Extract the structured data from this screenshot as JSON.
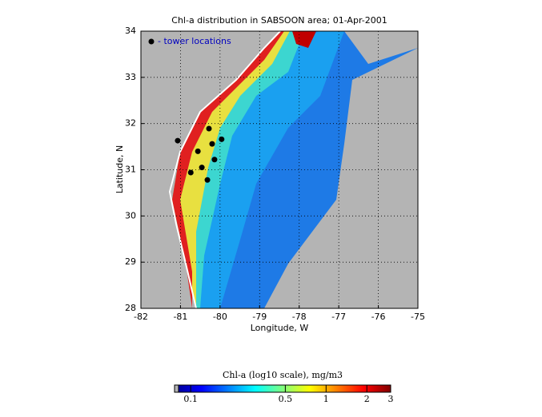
{
  "chart_data": {
    "type": "map",
    "title": "Chl-a distribution in SABSOON area; 01-Apr-2001",
    "x_label": "Longitude, W",
    "y_label": "Latitude, N",
    "xlim": [
      -82,
      -75
    ],
    "ylim": [
      28,
      34
    ],
    "xticks": [
      -82,
      -81,
      -80,
      -79,
      -78,
      -77,
      -76,
      -75
    ],
    "yticks": [
      28,
      29,
      30,
      31,
      32,
      33,
      34
    ],
    "grid": true,
    "legend": "upper left",
    "series": [
      {
        "name": "- tower locations",
        "color": "#000000",
        "x": [
          -81.07,
          -80.28,
          -79.96,
          -80.2,
          -80.56,
          -80.14,
          -80.46,
          -80.74,
          -80.32
        ],
        "y": [
          31.63,
          31.89,
          31.66,
          31.56,
          31.4,
          31.22,
          31.05,
          30.94,
          30.78
        ]
      }
    ],
    "colorbar": {
      "label": "Chl-a (log10 scale), mg/m3",
      "lim": [
        0.076,
        3
      ],
      "log": true,
      "ticks": [
        0.1,
        0.5,
        1,
        2,
        3
      ]
    }
  }
}
